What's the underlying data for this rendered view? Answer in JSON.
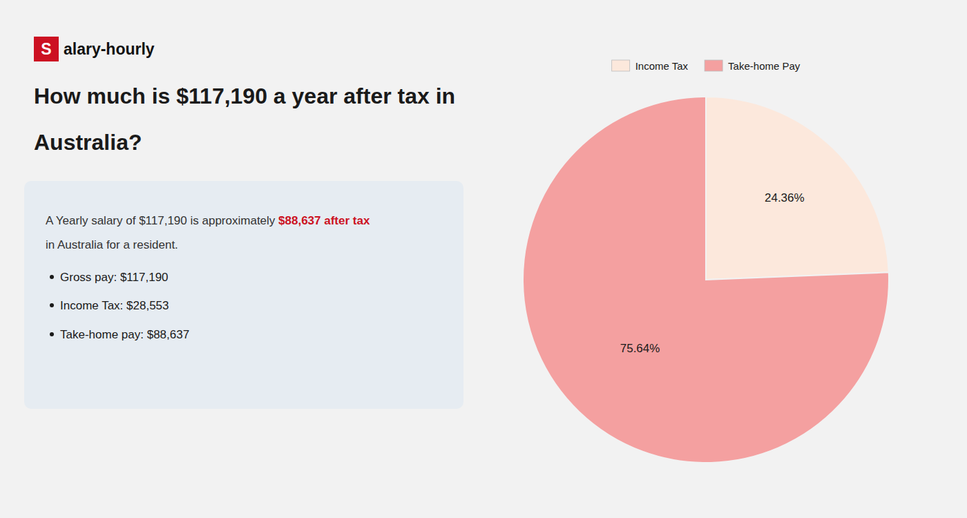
{
  "chart_data": {
    "type": "pie",
    "title": "How much is $117,190 a year after tax in Australia?",
    "annotations": [
      "S",
      "alary-hourly",
      "A Yearly salary of $117,190 is approximately ",
      "$88,637 after tax",
      "in Australia for a resident.",
      "Gross pay: $117,190",
      "Income Tax: $28,553",
      "Take-home pay: $88,637"
    ],
    "categories": [
      "Income Tax",
      "Take-home Pay"
    ],
    "values": [
      24.36,
      75.64
    ],
    "value_labels": [
      "24.36%",
      "75.64%"
    ],
    "colors": [
      "#fce8dc",
      "#f4a0a0"
    ],
    "data_labels": true,
    "legend": "top"
  }
}
